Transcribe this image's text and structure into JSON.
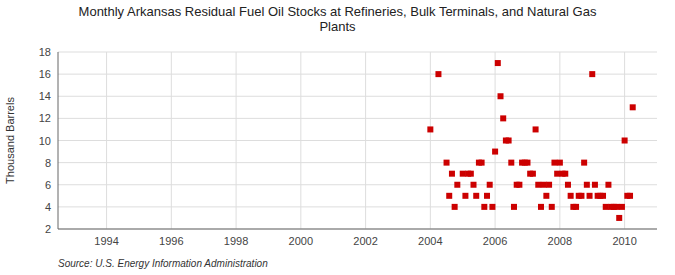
{
  "chart_data": {
    "type": "scatter",
    "title": "Monthly Arkansas Residual Fuel Oil Stocks at Refineries, Bulk Terminals, and Natural Gas\nPlants",
    "ylabel": "Thousand Barrels",
    "source": "Source: U.S. Energy Information Administration",
    "color": "#cc0000",
    "marker": "square",
    "grid": true,
    "xlim": [
      1992.5,
      2011.0
    ],
    "ylim": [
      2,
      18
    ],
    "xticks": [
      1994,
      1996,
      1998,
      2000,
      2002,
      2004,
      2006,
      2008,
      2010
    ],
    "yticks": [
      2,
      4,
      6,
      8,
      10,
      12,
      14,
      16,
      18
    ],
    "x": [
      2004.0,
      2004.25,
      2004.5,
      2004.583,
      2004.667,
      2004.75,
      2004.833,
      2005.0,
      2005.083,
      2005.167,
      2005.25,
      2005.333,
      2005.417,
      2005.5,
      2005.583,
      2005.667,
      2005.75,
      2005.833,
      2005.917,
      2006.0,
      2006.083,
      2006.167,
      2006.25,
      2006.333,
      2006.417,
      2006.5,
      2006.583,
      2006.667,
      2006.75,
      2006.833,
      2006.917,
      2007.0,
      2007.083,
      2007.167,
      2007.25,
      2007.333,
      2007.417,
      2007.5,
      2007.583,
      2007.667,
      2007.75,
      2007.833,
      2007.917,
      2008.0,
      2008.083,
      2008.167,
      2008.25,
      2008.333,
      2008.417,
      2008.5,
      2008.583,
      2008.667,
      2008.75,
      2008.833,
      2008.917,
      2009.0,
      2009.083,
      2009.167,
      2009.25,
      2009.333,
      2009.417,
      2009.5,
      2009.583,
      2009.667,
      2009.75,
      2009.833,
      2009.917,
      2010.0,
      2010.083,
      2010.167,
      2010.25
    ],
    "values": [
      11,
      16,
      8,
      5,
      7,
      4,
      6,
      7,
      5,
      7,
      7,
      6,
      5,
      8,
      8,
      4,
      5,
      6,
      4,
      9,
      17,
      14,
      12,
      10,
      10,
      8,
      4,
      6,
      6,
      8,
      8,
      8,
      7,
      7,
      11,
      6,
      4,
      6,
      5,
      6,
      4,
      8,
      7,
      8,
      7,
      7,
      6,
      5,
      4,
      4,
      5,
      5,
      8,
      6,
      5,
      16,
      6,
      5,
      5,
      5,
      4,
      6,
      4,
      4,
      4,
      3,
      4,
      10,
      5,
      5,
      13
    ]
  }
}
